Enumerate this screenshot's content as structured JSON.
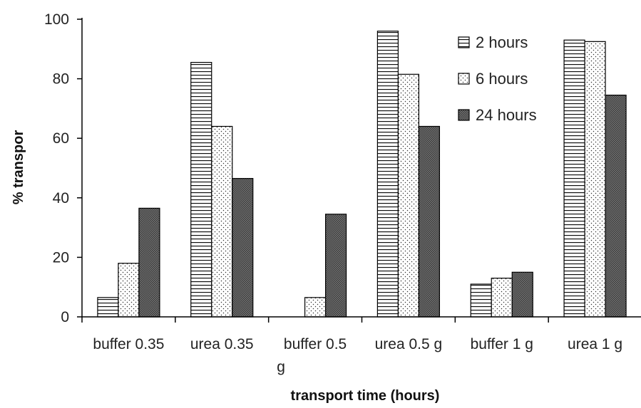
{
  "chart_data": {
    "type": "bar",
    "title": "",
    "xlabel": "transport time (hours)",
    "ylabel": "% transpor",
    "ylim": [
      0,
      100
    ],
    "yticks": [
      0,
      20,
      40,
      60,
      80,
      100
    ],
    "categories": [
      [
        "buffer 0.35"
      ],
      [
        "urea 0.35"
      ],
      [
        "buffer 0.5",
        "g"
      ],
      [
        "urea 0.5 g"
      ],
      [
        "buffer 1 g"
      ],
      [
        "urea 1 g"
      ]
    ],
    "series": [
      {
        "name": "2 hours",
        "pattern": "horizontal-lines",
        "values": [
          6.5,
          85.5,
          0,
          96,
          11,
          93
        ]
      },
      {
        "name": "6 hours",
        "pattern": "dots",
        "values": [
          18,
          64,
          6.5,
          81.5,
          13,
          92.5
        ]
      },
      {
        "name": "24 hours",
        "pattern": "dark-checker",
        "values": [
          36.5,
          46.5,
          34.5,
          64,
          15,
          74.5
        ]
      }
    ],
    "legend_position": "top-right",
    "grid": false
  }
}
